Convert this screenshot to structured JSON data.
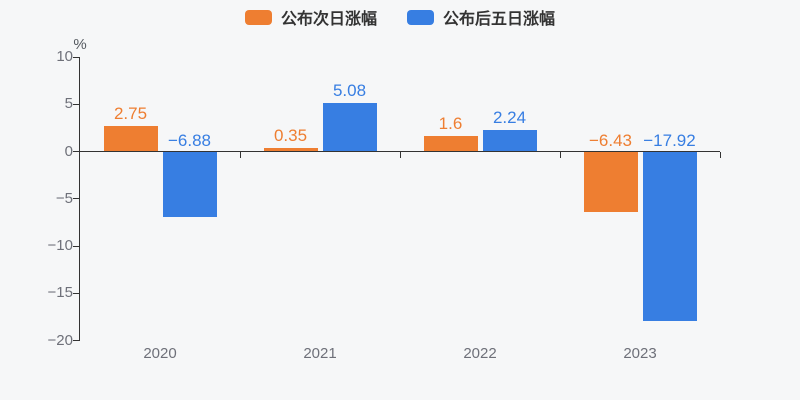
{
  "chart": {
    "background": "#f6f7f8",
    "axis_color": "#333333",
    "tick_label_color": "#6e7079",
    "unit_label_color": "#565b61",
    "legend_text_color": "#333333"
  },
  "chart_data": {
    "type": "bar",
    "title": "",
    "xlabel": "",
    "ylabel": "%",
    "ylim": [
      -20,
      10
    ],
    "ytick_step": 5,
    "y_tick_labels": [
      "10",
      "5",
      "0",
      "−5",
      "−10",
      "−15",
      "−20"
    ],
    "categories": [
      "2020",
      "2021",
      "2022",
      "2023"
    ],
    "series": [
      {
        "name": "公布次日涨幅",
        "color": "#ee7e31",
        "values": [
          2.75,
          0.35,
          1.6,
          -6.43
        ],
        "labels": [
          "2.75",
          "0.35",
          "1.6",
          "−6.43"
        ]
      },
      {
        "name": "公布后五日涨幅",
        "color": "#377ee2",
        "values": [
          -6.88,
          5.08,
          2.24,
          -17.92
        ],
        "labels": [
          "−6.88",
          "5.08",
          "2.24",
          "−17.92"
        ]
      }
    ],
    "legend_position": "top-center",
    "grid": false
  }
}
